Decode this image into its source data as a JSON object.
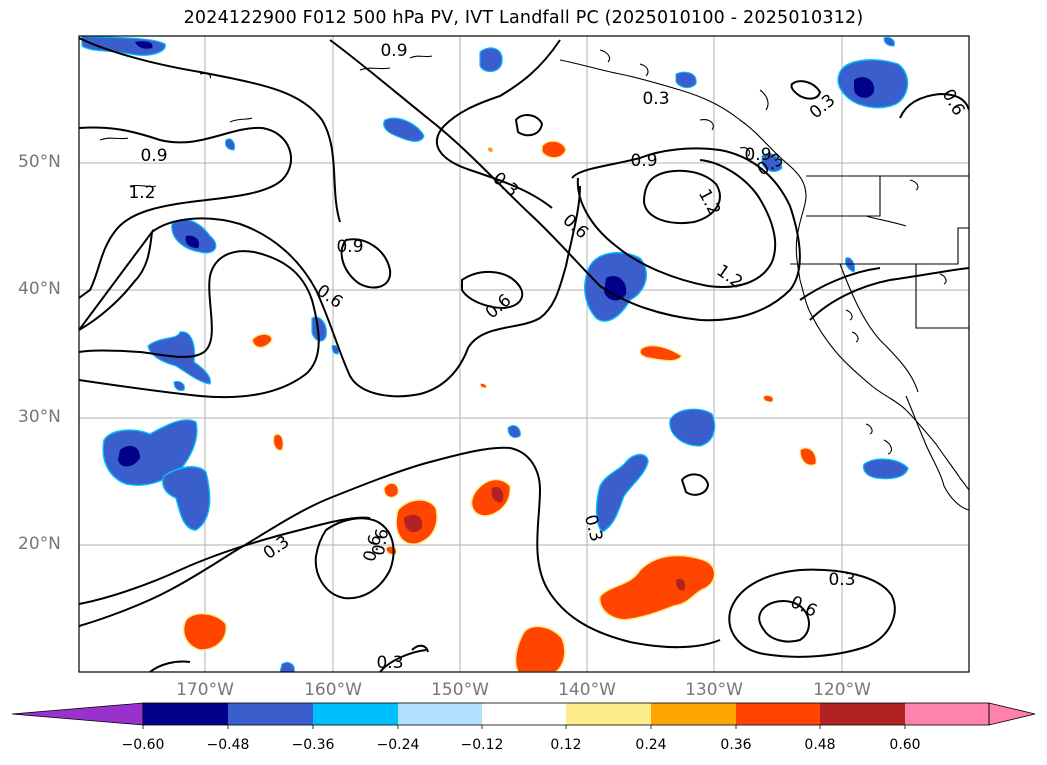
{
  "title": "2024122900 F012 500 hPa PV, IVT Landfall PC (2025010100 - 2025010312)",
  "map": {
    "lat_labels": [
      "50°N",
      "40°N",
      "30°N",
      "20°N"
    ],
    "lon_labels": [
      "170°W",
      "160°W",
      "150°W",
      "140°W",
      "130°W",
      "120°W"
    ],
    "contour_labels": [
      "0.9",
      "0.9",
      "0.3",
      "0.3",
      "0.6",
      "0.9",
      "1.2",
      "0.3",
      "0.6",
      "0.9",
      "1.2",
      "1.2",
      "0.9",
      "0.6",
      "0.6",
      "0.3",
      "0.6",
      "0.3",
      "0.3",
      "0.6",
      "0.3",
      "0.3",
      "0.6"
    ],
    "colors": {
      "contour": "#000000",
      "grid": "#b0b0b0",
      "coast": "#000000"
    }
  },
  "colorbar": {
    "ticks": [
      "−0.60",
      "−0.48",
      "−0.36",
      "−0.24",
      "−0.12",
      "0.12",
      "0.24",
      "0.36",
      "0.48",
      "0.60"
    ],
    "colors": [
      "#9932cc",
      "#00008b",
      "#3a5fcd",
      "#00bfff",
      "#b0e2ff",
      "#ffffff",
      "#ffec8b",
      "#ffa500",
      "#ff4500",
      "#b22222",
      "#ff82ab"
    ]
  }
}
